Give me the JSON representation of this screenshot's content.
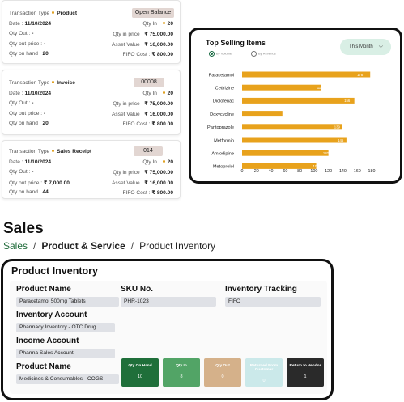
{
  "transactions": [
    {
      "type_label": "Transaction Type",
      "type_value": "Product",
      "badge": "Open Balance",
      "date_label": "Date :",
      "date_value": "11/10/2024",
      "qty_out_label": "Qty Out :",
      "qty_out_value": "-",
      "qty_out_price_label": "Qty out price :",
      "qty_out_price_value": "-",
      "qty_on_hand_label": "Qty on hand :",
      "qty_on_hand_value": "20",
      "qty_in_label": "Qty In :",
      "qty_in_value": "20",
      "qty_in_price_label": "Qty in price :",
      "qty_in_price_value": "₹ 75,000.00",
      "asset_value_label": "Asset Value :",
      "asset_value_value": "₹ 16,000.00",
      "fifo_cost_label": "FIFO Cost :",
      "fifo_cost_value": "₹ 800.00"
    },
    {
      "type_label": "Transaction Type",
      "type_value": "Invoice",
      "badge": "00008",
      "date_label": "Date :",
      "date_value": "11/10/2024",
      "qty_out_label": "Qty Out :",
      "qty_out_value": "-",
      "qty_out_price_label": "Qty out price :",
      "qty_out_price_value": "-",
      "qty_on_hand_label": "Qty on hand :",
      "qty_on_hand_value": "20",
      "qty_in_label": "Qty In :",
      "qty_in_value": "20",
      "qty_in_price_label": "Qty in price :",
      "qty_in_price_value": "₹ 75,000.00",
      "asset_value_label": "Asset Value :",
      "asset_value_value": "₹ 16,000.00",
      "fifo_cost_label": "FIFO Cost :",
      "fifo_cost_value": "₹ 800.00"
    },
    {
      "type_label": "Transaction Type",
      "type_value": "Sales Receipt",
      "badge": "014",
      "date_label": "Date :",
      "date_value": "11/10/2024",
      "qty_out_label": "Qty Out :",
      "qty_out_value": "-",
      "qty_out_price_label": "Qty out price :",
      "qty_out_price_value": "₹ 7,000.00",
      "qty_on_hand_label": "Qty on hand :",
      "qty_on_hand_value": "44",
      "qty_in_label": "Qty In :",
      "qty_in_value": "20",
      "qty_in_price_label": "Qty in price :",
      "qty_in_price_value": "₹ 75,000.00",
      "asset_value_label": "Asset Value :",
      "asset_value_value": "₹ 16,000.00",
      "fifo_cost_label": "FIFO Cost :",
      "fifo_cost_value": "₹ 800.00"
    }
  ],
  "top_selling": {
    "title": "Top Selling Items",
    "radio_volume": "By Volume",
    "radio_revenue": "By Revenue",
    "period_button": "This Month",
    "colors": {
      "bar": "#e8a21c",
      "active_radio": "#1b6b44"
    }
  },
  "chart_data": {
    "type": "bar",
    "orientation": "horizontal",
    "title": "Top Selling Items",
    "categories": [
      "Paracetamol",
      "Cetirizine",
      "Diclofenac",
      "Doxycycline",
      "Pantoprazole",
      "Metformin",
      "Amlodipine",
      "Metoprolol"
    ],
    "values": [
      178,
      110,
      156,
      56,
      139,
      145,
      120,
      103
    ],
    "xlim": [
      0,
      180
    ],
    "xticks": [
      0,
      20,
      40,
      60,
      80,
      100,
      120,
      140,
      160,
      180
    ],
    "grid": false
  },
  "sales": {
    "heading": "Sales",
    "breadcrumb": [
      "Sales",
      "/",
      "Product & Service",
      "/",
      "Product Inventory"
    ]
  },
  "product_inventory": {
    "title": "Product Inventory",
    "product_name_label": "Product Name",
    "product_name_value": "Paracetamol 500mg Tablets",
    "sku_label": "SKU No.",
    "sku_value": "PHR-1023",
    "tracking_label": "Inventory Tracking",
    "tracking_value": "FIFO",
    "inventory_account_label": "Inventory Account",
    "inventory_account_value": "Pharmacy Inventory - OTC Drug",
    "income_account_label": "Income Account",
    "income_account_value": "Pharma Sales Account",
    "product_name2_label": "Product Name",
    "product_name2_value": "Medicines & Consumables - COGS",
    "stats": [
      {
        "label": "Qty On Hand",
        "value": "10",
        "color": "#1f6f3a"
      },
      {
        "label": "Qty In",
        "value": "8",
        "color": "#52a466"
      },
      {
        "label": "Qty Out",
        "value": "0",
        "color": "#d5b18a"
      },
      {
        "label": "Returned From Customer",
        "value": "0",
        "color": "#cbe9ea"
      },
      {
        "label": "Return to Vendor",
        "value": "1",
        "color": "#2a2a2a"
      }
    ]
  }
}
